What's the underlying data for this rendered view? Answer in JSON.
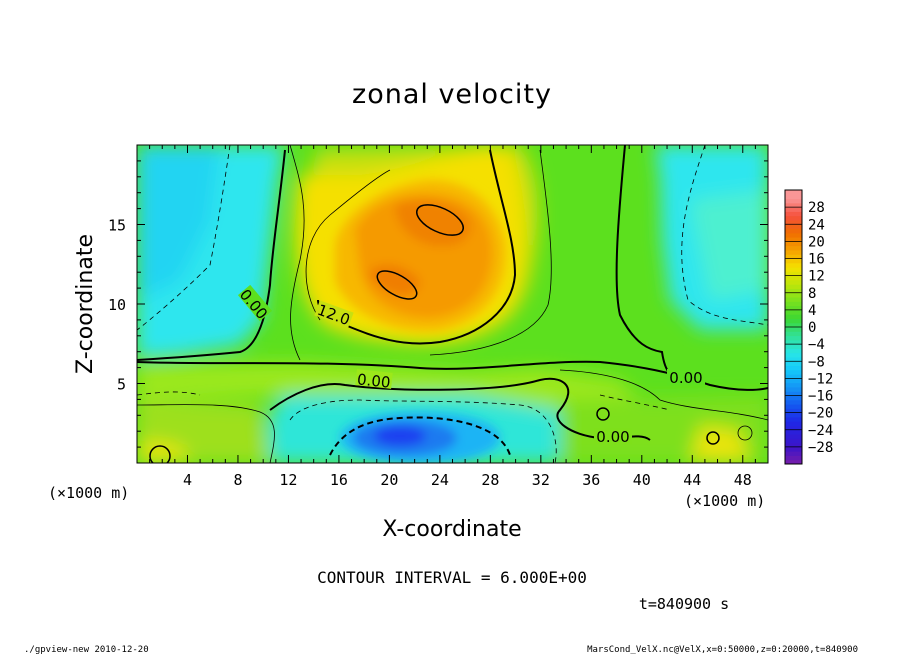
{
  "chart_data": {
    "type": "heatmap",
    "title": "zonal velocity",
    "xlabel": "X-coordinate",
    "ylabel": "Z-coordinate",
    "x_unit": "(×1000 m)",
    "x_unit_right": "(×1000 m)",
    "xlim": [
      0,
      50
    ],
    "ylim": [
      0,
      20
    ],
    "x_ticks": [
      4,
      8,
      12,
      16,
      20,
      24,
      28,
      32,
      36,
      40,
      44,
      48
    ],
    "y_ticks": [
      5,
      10,
      15
    ],
    "contour_interval_text": "CONTOUR INTERVAL = 6.000E+00",
    "time_text": "t=840900 s",
    "contour_labels": [
      "0.00",
      "12.0",
      "0.00",
      "0.00",
      "0.00"
    ],
    "colorbar": {
      "levels": [
        28,
        24,
        20,
        16,
        12,
        8,
        4,
        0,
        -4,
        -8,
        -12,
        -16,
        -20,
        -24,
        -28
      ],
      "labels": [
        "28",
        "24",
        "20",
        "16",
        "12",
        "8",
        "4",
        "0",
        "−4",
        "−8",
        "−12",
        "−16",
        "−20",
        "−24",
        "−28"
      ]
    },
    "features": [
      {
        "kind": "max",
        "x": 24,
        "z": 15.5,
        "value": 20
      },
      {
        "kind": "max",
        "x": 20,
        "z": 11.5,
        "value": 20
      },
      {
        "kind": "min",
        "x": 21,
        "z": 2,
        "value": -20
      }
    ]
  },
  "footer": {
    "left": "./gpview-new  2010-12-20",
    "right": "MarsCond_VelX.nc@VelX,x=0:50000,z=0:20000,t=840900"
  },
  "colors": {
    "cyan": "#2fe6ee",
    "green": "#5ce01e",
    "orange": "#f08a00",
    "blue": "#1a3ff0"
  }
}
